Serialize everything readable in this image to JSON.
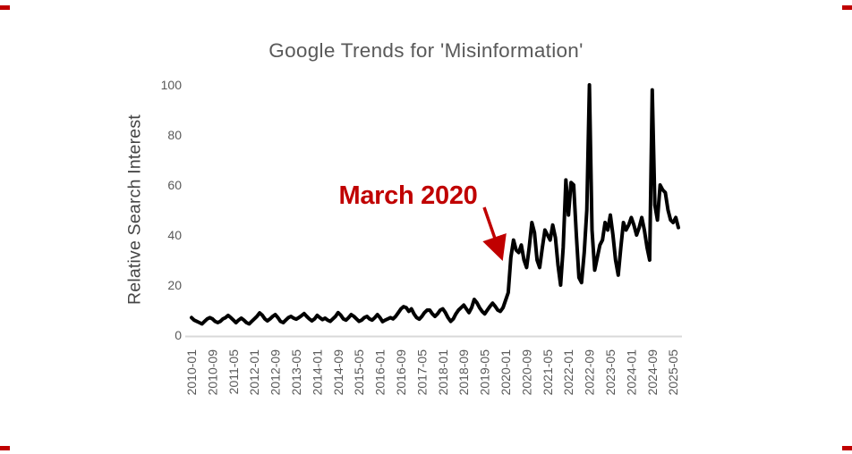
{
  "page": {
    "background_color": "#ffffff",
    "corner_mark_color": "#c00000"
  },
  "chart_data": {
    "type": "line",
    "title": "Google Trends for 'Misinformation'",
    "xlabel": "",
    "ylabel": "Relative Search Interest",
    "ylim": [
      0,
      100
    ],
    "yticks": [
      0,
      20,
      40,
      60,
      80,
      100
    ],
    "x_start_month": "2010-01",
    "x_end_month": "2025-07",
    "frequency": "monthly",
    "x_tick_labels": [
      "2010-01",
      "2010-09",
      "2011-05",
      "2012-01",
      "2012-09",
      "2013-05",
      "2014-01",
      "2014-09",
      "2015-05",
      "2016-01",
      "2016-09",
      "2017-05",
      "2018-01",
      "2018-09",
      "2019-05",
      "2020-01",
      "2020-09",
      "2021-05",
      "2022-01",
      "2022-09",
      "2023-05",
      "2024-01",
      "2024-09",
      "2025-05"
    ],
    "x_tick_step_months": 8,
    "grid": "baseline only",
    "legend_position": "none",
    "baseline_color": "#d9d9d9",
    "axis_text_color": "#595959",
    "series": [
      {
        "name": "Relative search interest for 'Misinformation'",
        "color": "#000000",
        "line_width": 4,
        "values": [
          7,
          6,
          5.5,
          5,
          4.5,
          5.5,
          6.5,
          7,
          6.5,
          5.5,
          5,
          5.5,
          6.5,
          7,
          7.9,
          7,
          6,
          5,
          6,
          6.8,
          6,
          5,
          4.5,
          5.5,
          6.5,
          7.5,
          8.9,
          8,
          6.5,
          5.7,
          6.5,
          7.5,
          8.2,
          7,
          5.5,
          5,
          6,
          7,
          7.5,
          6.8,
          6.4,
          7,
          7.8,
          8.6,
          7.5,
          6.5,
          5.7,
          6.5,
          7.9,
          7,
          6.2,
          6.8,
          6,
          5.5,
          6.5,
          7.5,
          9,
          8,
          6.5,
          6,
          7,
          8.2,
          7.5,
          6.5,
          5.5,
          6,
          7,
          7.5,
          6.5,
          6,
          7,
          8.2,
          7,
          5.4,
          6,
          6.5,
          7,
          6.5,
          7.5,
          9,
          10.5,
          11.4,
          11,
          9.5,
          10.5,
          8.5,
          7,
          6.4,
          7.5,
          9,
          10,
          10,
          8.5,
          7.5,
          8.5,
          10,
          10.5,
          9,
          7,
          5.5,
          6.5,
          8.5,
          10,
          11,
          12,
          10.5,
          9,
          11,
          14.3,
          13,
          11,
          9.5,
          8.5,
          10,
          11.5,
          12.8,
          11.5,
          10,
          9.5,
          11,
          14,
          17,
          31,
          38,
          34,
          33,
          36,
          30,
          27,
          35,
          45,
          41,
          30,
          27,
          35,
          42,
          40,
          38,
          44,
          39,
          28,
          20,
          35,
          62,
          48,
          61,
          60,
          40,
          23,
          21,
          33,
          50,
          100,
          42,
          26,
          31,
          36,
          38,
          45,
          42,
          48,
          40,
          30,
          24,
          35,
          45,
          42,
          44,
          47,
          44,
          40,
          43,
          47,
          42,
          35,
          30,
          98,
          52,
          46,
          60,
          58,
          57,
          50,
          46,
          45,
          47,
          43
        ]
      }
    ],
    "annotation": {
      "text": "March 2020",
      "color": "#c00000",
      "points_to_month": "2020-03",
      "arrow": "red arrow from label down-right to the start of the 2020 surge"
    }
  }
}
